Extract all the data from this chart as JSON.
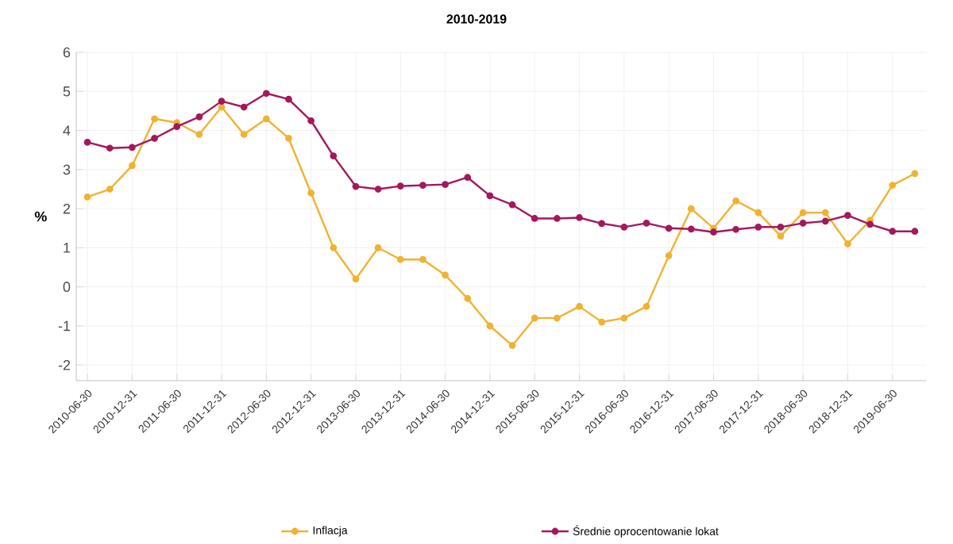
{
  "chart_data": {
    "type": "line",
    "title": "2010-2019",
    "ylabel": "%",
    "categories": [
      "2010-06-30",
      null,
      "2010-12-31",
      null,
      "2011-06-30",
      null,
      "2011-12-31",
      null,
      "2012-06-30",
      null,
      "2012-12-31",
      null,
      "2013-06-30",
      null,
      "2013-12-31",
      null,
      "2014-06-30",
      null,
      "2014-12-31",
      null,
      "2015-06-30",
      null,
      "2015-12-31",
      null,
      "2016-06-30",
      null,
      "2016-12-31",
      null,
      "2017-06-30",
      null,
      "2017-12-31",
      null,
      "2018-06-30",
      null,
      "2018-12-31",
      null,
      "2019-06-30",
      null
    ],
    "series": [
      {
        "name": "Inflacja",
        "color": "#f0b232",
        "values": [
          2.3,
          2.5,
          3.1,
          4.3,
          4.2,
          3.9,
          4.6,
          3.9,
          4.3,
          3.8,
          2.4,
          1.0,
          0.2,
          1.0,
          0.7,
          0.7,
          0.3,
          -0.3,
          -1.0,
          -1.5,
          -0.8,
          -0.8,
          -0.5,
          -0.9,
          -0.8,
          -0.5,
          0.8,
          2.0,
          1.5,
          2.2,
          1.9,
          1.3,
          1.9,
          1.9,
          1.1,
          1.7,
          2.6,
          2.9
        ]
      },
      {
        "name": "Średnie oprocentowanie lokat",
        "color": "#a3195b",
        "values": [
          3.7,
          3.55,
          3.57,
          3.8,
          4.1,
          4.35,
          4.75,
          4.6,
          4.95,
          4.8,
          4.25,
          3.35,
          2.57,
          2.5,
          2.58,
          2.6,
          2.62,
          2.8,
          2.33,
          2.1,
          1.75,
          1.75,
          1.77,
          1.62,
          1.53,
          1.63,
          1.5,
          1.48,
          1.4,
          1.47,
          1.53,
          1.53,
          1.63,
          1.68,
          1.83,
          1.6,
          1.42,
          1.42
        ]
      }
    ],
    "ylim": [
      -2.4,
      6
    ],
    "yticks": [
      -2,
      -1,
      0,
      1,
      2,
      3,
      4,
      5,
      6
    ],
    "grid": true,
    "legend": "bottom",
    "marker": "circle",
    "line_style": "solid"
  }
}
